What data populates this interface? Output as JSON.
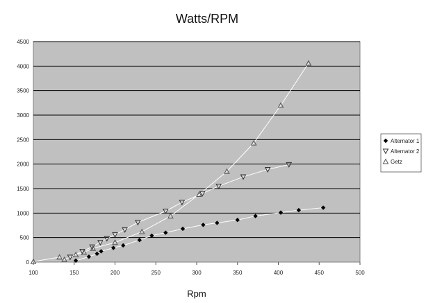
{
  "chart_data": {
    "type": "scatter",
    "title": "Watts/RPM",
    "xlabel": "Rpm",
    "ylabel": "",
    "xlim": [
      100,
      500
    ],
    "ylim": [
      0,
      4500
    ],
    "xticks": [
      "100",
      "150",
      "200",
      "250",
      "300",
      "350",
      "400",
      "450",
      "500"
    ],
    "yticks": [
      "0",
      "500",
      "1000",
      "1500",
      "2000",
      "2500",
      "3000",
      "3500",
      "4000",
      "4500"
    ],
    "grid": "horizontal",
    "legend_position": "right",
    "plot_background": "#c0c0c0",
    "series": [
      {
        "name": "Alternator 1",
        "marker": "diamond",
        "color": "#000000",
        "trendline": true,
        "x": [
          152,
          168,
          178,
          183,
          198,
          210,
          230,
          245,
          262,
          283,
          308,
          325,
          350,
          372,
          403,
          425,
          455
        ],
        "y": [
          30,
          110,
          170,
          220,
          290,
          340,
          450,
          540,
          600,
          680,
          760,
          800,
          860,
          940,
          1010,
          1060,
          1110
        ]
      },
      {
        "name": "Alternator 2",
        "marker": "triangle-down",
        "color": "#333333",
        "trendline": true,
        "x": [
          145,
          160,
          172,
          182,
          190,
          200,
          212,
          228,
          262,
          282,
          307,
          327,
          357,
          387,
          413
        ],
        "y": [
          100,
          220,
          310,
          400,
          480,
          560,
          660,
          810,
          1040,
          1220,
          1400,
          1550,
          1740,
          1890,
          1990
        ]
      },
      {
        "name": "Getz",
        "marker": "triangle-up",
        "color": "#555555",
        "trendline": true,
        "x": [
          100,
          132,
          138,
          152,
          162,
          173,
          200,
          233,
          268,
          303,
          337,
          370,
          403,
          437
        ],
        "y": [
          10,
          100,
          50,
          150,
          200,
          280,
          400,
          620,
          940,
          1380,
          1850,
          2430,
          3200,
          4060
        ]
      }
    ]
  }
}
